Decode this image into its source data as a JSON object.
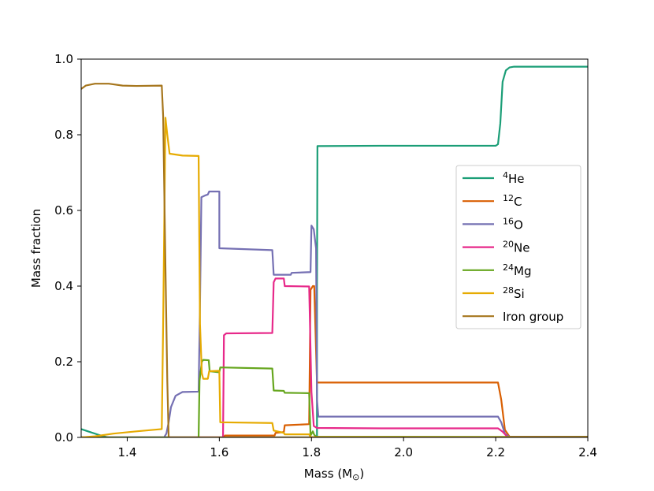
{
  "chart_data": {
    "type": "line",
    "xlabel": "Mass (M",
    "xlabel_symbol": "⊙",
    "xlabel_close": ")",
    "ylabel": "Mass fraction",
    "xlim": [
      1.3,
      2.4
    ],
    "ylim": [
      0.0,
      1.0
    ],
    "xticks": [
      1.4,
      1.6,
      1.8,
      2.0,
      2.2,
      2.4
    ],
    "xtick_labels": [
      "1.4",
      "1.6",
      "1.8",
      "2.0",
      "2.2",
      "2.4"
    ],
    "yticks": [
      0.0,
      0.2,
      0.4,
      0.6,
      0.8,
      1.0
    ],
    "ytick_labels": [
      "0.0",
      "0.2",
      "0.4",
      "0.6",
      "0.8",
      "1.0"
    ],
    "legend_position": "right",
    "series": [
      {
        "name": "4He",
        "sup": "4",
        "base": "He",
        "color": "#1b9e77",
        "points": [
          [
            1.3,
            0.022
          ],
          [
            1.32,
            0.014
          ],
          [
            1.34,
            0.006
          ],
          [
            1.355,
            0.001
          ],
          [
            1.36,
            0.0
          ],
          [
            1.812,
            0.0
          ],
          [
            1.812,
            0.4
          ],
          [
            1.813,
            0.77
          ],
          [
            1.95,
            0.771
          ],
          [
            2.1,
            0.771
          ],
          [
            2.2,
            0.771
          ],
          [
            2.205,
            0.775
          ],
          [
            2.21,
            0.83
          ],
          [
            2.215,
            0.94
          ],
          [
            2.222,
            0.97
          ],
          [
            2.23,
            0.978
          ],
          [
            2.24,
            0.98
          ],
          [
            2.4,
            0.98
          ]
        ]
      },
      {
        "name": "12C",
        "sup": "12",
        "base": "C",
        "color": "#d95f02",
        "points": [
          [
            1.3,
            0.0
          ],
          [
            1.61,
            0.0
          ],
          [
            1.612,
            0.005
          ],
          [
            1.72,
            0.005
          ],
          [
            1.722,
            0.012
          ],
          [
            1.74,
            0.014
          ],
          [
            1.742,
            0.032
          ],
          [
            1.795,
            0.035
          ],
          [
            1.798,
            0.39
          ],
          [
            1.803,
            0.4
          ],
          [
            1.806,
            0.4
          ],
          [
            1.812,
            0.145
          ],
          [
            1.95,
            0.145
          ],
          [
            2.1,
            0.145
          ],
          [
            2.205,
            0.145
          ],
          [
            2.212,
            0.1
          ],
          [
            2.22,
            0.02
          ],
          [
            2.23,
            0.002
          ],
          [
            2.4,
            0.002
          ]
        ]
      },
      {
        "name": "16O",
        "sup": "16",
        "base": "O",
        "color": "#7570b3",
        "points": [
          [
            1.3,
            0.0
          ],
          [
            1.48,
            0.0
          ],
          [
            1.485,
            0.01
          ],
          [
            1.49,
            0.04
          ],
          [
            1.495,
            0.08
          ],
          [
            1.505,
            0.11
          ],
          [
            1.52,
            0.12
          ],
          [
            1.555,
            0.121
          ],
          [
            1.558,
            0.35
          ],
          [
            1.561,
            0.635
          ],
          [
            1.57,
            0.64
          ],
          [
            1.575,
            0.642
          ],
          [
            1.578,
            0.65
          ],
          [
            1.6,
            0.65
          ],
          [
            1.6,
            0.5
          ],
          [
            1.715,
            0.495
          ],
          [
            1.718,
            0.43
          ],
          [
            1.755,
            0.43
          ],
          [
            1.757,
            0.435
          ],
          [
            1.798,
            0.437
          ],
          [
            1.8,
            0.56
          ],
          [
            1.805,
            0.55
          ],
          [
            1.81,
            0.5
          ],
          [
            1.812,
            0.1
          ],
          [
            1.815,
            0.055
          ],
          [
            1.95,
            0.055
          ],
          [
            2.1,
            0.055
          ],
          [
            2.205,
            0.055
          ],
          [
            2.212,
            0.04
          ],
          [
            2.22,
            0.01
          ],
          [
            2.23,
            0.001
          ],
          [
            2.4,
            0.001
          ]
        ]
      },
      {
        "name": "20Ne",
        "sup": "20",
        "base": "Ne",
        "color": "#e7298a",
        "points": [
          [
            1.3,
            0.0
          ],
          [
            1.608,
            0.0
          ],
          [
            1.61,
            0.27
          ],
          [
            1.615,
            0.275
          ],
          [
            1.715,
            0.276
          ],
          [
            1.718,
            0.41
          ],
          [
            1.722,
            0.42
          ],
          [
            1.74,
            0.42
          ],
          [
            1.742,
            0.4
          ],
          [
            1.795,
            0.399
          ],
          [
            1.8,
            0.12
          ],
          [
            1.805,
            0.03
          ],
          [
            1.812,
            0.025
          ],
          [
            1.95,
            0.024
          ],
          [
            2.1,
            0.024
          ],
          [
            2.205,
            0.024
          ],
          [
            2.215,
            0.015
          ],
          [
            2.225,
            0.002
          ],
          [
            2.4,
            0.001
          ]
        ]
      },
      {
        "name": "24Mg",
        "sup": "24",
        "base": "Mg",
        "color": "#66a61e",
        "points": [
          [
            1.3,
            0.0
          ],
          [
            1.555,
            0.0
          ],
          [
            1.557,
            0.15
          ],
          [
            1.562,
            0.2
          ],
          [
            1.565,
            0.205
          ],
          [
            1.577,
            0.204
          ],
          [
            1.579,
            0.175
          ],
          [
            1.6,
            0.172
          ],
          [
            1.602,
            0.185
          ],
          [
            1.715,
            0.182
          ],
          [
            1.718,
            0.124
          ],
          [
            1.74,
            0.123
          ],
          [
            1.742,
            0.118
          ],
          [
            1.795,
            0.117
          ],
          [
            1.798,
            0.005
          ],
          [
            1.803,
            0.016
          ],
          [
            1.806,
            0.007
          ],
          [
            1.81,
            0.002
          ],
          [
            2.4,
            0.001
          ]
        ]
      },
      {
        "name": "28Si",
        "sup": "28",
        "base": "Si",
        "color": "#e6ab02",
        "points": [
          [
            1.3,
            0.0
          ],
          [
            1.33,
            0.003
          ],
          [
            1.37,
            0.01
          ],
          [
            1.42,
            0.016
          ],
          [
            1.475,
            0.022
          ],
          [
            1.478,
            0.3
          ],
          [
            1.483,
            0.845
          ],
          [
            1.487,
            0.8
          ],
          [
            1.492,
            0.75
          ],
          [
            1.52,
            0.745
          ],
          [
            1.555,
            0.744
          ],
          [
            1.558,
            0.3
          ],
          [
            1.562,
            0.17
          ],
          [
            1.565,
            0.155
          ],
          [
            1.575,
            0.155
          ],
          [
            1.578,
            0.175
          ],
          [
            1.6,
            0.176
          ],
          [
            1.602,
            0.04
          ],
          [
            1.715,
            0.038
          ],
          [
            1.718,
            0.018
          ],
          [
            1.74,
            0.012
          ],
          [
            1.742,
            0.008
          ],
          [
            1.795,
            0.008
          ],
          [
            1.798,
            0.001
          ],
          [
            2.4,
            0.0
          ]
        ]
      },
      {
        "name": "Iron group",
        "sup": "",
        "base": "Iron group",
        "color": "#a6761d",
        "points": [
          [
            1.3,
            0.921
          ],
          [
            1.31,
            0.93
          ],
          [
            1.33,
            0.935
          ],
          [
            1.36,
            0.935
          ],
          [
            1.39,
            0.93
          ],
          [
            1.42,
            0.929
          ],
          [
            1.475,
            0.93
          ],
          [
            1.478,
            0.85
          ],
          [
            1.483,
            0.45
          ],
          [
            1.487,
            0.15
          ],
          [
            1.49,
            0.0
          ],
          [
            2.4,
            0.0
          ]
        ]
      }
    ]
  }
}
